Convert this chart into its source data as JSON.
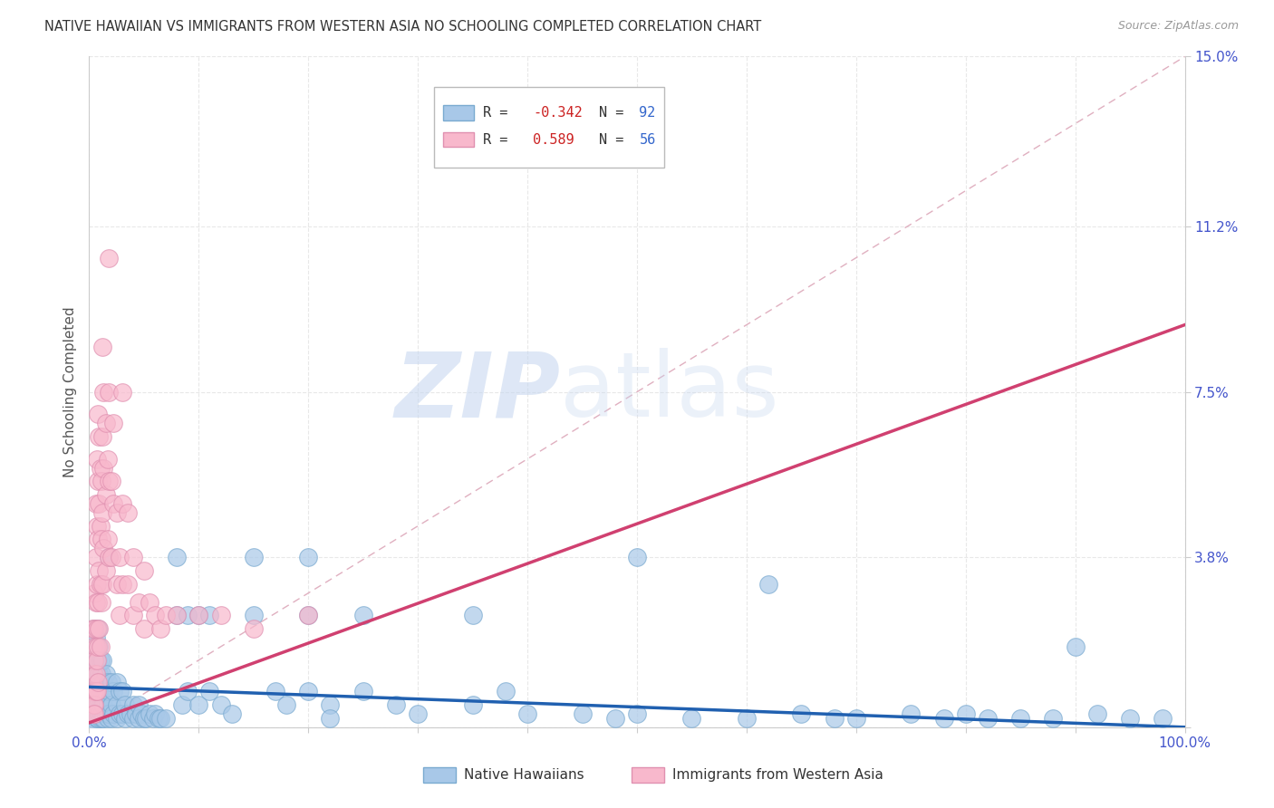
{
  "title": "NATIVE HAWAIIAN VS IMMIGRANTS FROM WESTERN ASIA NO SCHOOLING COMPLETED CORRELATION CHART",
  "source": "Source: ZipAtlas.com",
  "ylabel": "No Schooling Completed",
  "xlim": [
    0,
    1.0
  ],
  "ylim": [
    0,
    0.15
  ],
  "ytick_vals": [
    0.0,
    0.038,
    0.075,
    0.112,
    0.15
  ],
  "ytick_labels": [
    "",
    "3.8%",
    "7.5%",
    "11.2%",
    "15.0%"
  ],
  "color_blue": "#a8c8e8",
  "color_blue_edge": "#7aaad0",
  "color_pink": "#f8b8cc",
  "color_pink_edge": "#e090b0",
  "line_color_blue": "#2060b0",
  "line_color_pink": "#d04070",
  "diagonal_color": "#e0b0c0",
  "grid_color": "#e8e8e8",
  "legend_R1": "-0.342",
  "legend_N1": "92",
  "legend_R2": "0.589",
  "legend_N2": "56",
  "label1": "Native Hawaiians",
  "label2": "Immigrants from Western Asia",
  "blue_line": [
    0.0,
    1.0,
    0.009,
    0.0
  ],
  "pink_line": [
    0.0,
    1.0,
    0.001,
    0.09
  ],
  "blue_scatter": [
    [
      0.003,
      0.016
    ],
    [
      0.004,
      0.013
    ],
    [
      0.004,
      0.01
    ],
    [
      0.004,
      0.008
    ],
    [
      0.004,
      0.006
    ],
    [
      0.004,
      0.004
    ],
    [
      0.004,
      0.002
    ],
    [
      0.005,
      0.022
    ],
    [
      0.005,
      0.018
    ],
    [
      0.005,
      0.015
    ],
    [
      0.005,
      0.012
    ],
    [
      0.005,
      0.008
    ],
    [
      0.005,
      0.005
    ],
    [
      0.005,
      0.003
    ],
    [
      0.005,
      0.001
    ],
    [
      0.006,
      0.02
    ],
    [
      0.006,
      0.015
    ],
    [
      0.006,
      0.012
    ],
    [
      0.006,
      0.008
    ],
    [
      0.006,
      0.005
    ],
    [
      0.006,
      0.003
    ],
    [
      0.007,
      0.018
    ],
    [
      0.007,
      0.012
    ],
    [
      0.007,
      0.008
    ],
    [
      0.007,
      0.005
    ],
    [
      0.007,
      0.002
    ],
    [
      0.008,
      0.022
    ],
    [
      0.008,
      0.015
    ],
    [
      0.008,
      0.01
    ],
    [
      0.008,
      0.005
    ],
    [
      0.008,
      0.002
    ],
    [
      0.009,
      0.018
    ],
    [
      0.009,
      0.012
    ],
    [
      0.009,
      0.008
    ],
    [
      0.009,
      0.003
    ],
    [
      0.01,
      0.015
    ],
    [
      0.01,
      0.01
    ],
    [
      0.01,
      0.005
    ],
    [
      0.01,
      0.002
    ],
    [
      0.011,
      0.012
    ],
    [
      0.011,
      0.008
    ],
    [
      0.011,
      0.003
    ],
    [
      0.012,
      0.015
    ],
    [
      0.012,
      0.01
    ],
    [
      0.012,
      0.005
    ],
    [
      0.012,
      0.002
    ],
    [
      0.013,
      0.01
    ],
    [
      0.013,
      0.005
    ],
    [
      0.013,
      0.002
    ],
    [
      0.015,
      0.012
    ],
    [
      0.015,
      0.008
    ],
    [
      0.015,
      0.003
    ],
    [
      0.017,
      0.01
    ],
    [
      0.017,
      0.005
    ],
    [
      0.017,
      0.002
    ],
    [
      0.018,
      0.038
    ],
    [
      0.018,
      0.008
    ],
    [
      0.018,
      0.003
    ],
    [
      0.02,
      0.01
    ],
    [
      0.02,
      0.005
    ],
    [
      0.02,
      0.002
    ],
    [
      0.022,
      0.008
    ],
    [
      0.022,
      0.003
    ],
    [
      0.025,
      0.01
    ],
    [
      0.025,
      0.005
    ],
    [
      0.025,
      0.002
    ],
    [
      0.028,
      0.008
    ],
    [
      0.028,
      0.003
    ],
    [
      0.03,
      0.008
    ],
    [
      0.03,
      0.003
    ],
    [
      0.033,
      0.005
    ],
    [
      0.033,
      0.002
    ],
    [
      0.035,
      0.003
    ],
    [
      0.038,
      0.003
    ],
    [
      0.04,
      0.005
    ],
    [
      0.04,
      0.002
    ],
    [
      0.043,
      0.003
    ],
    [
      0.045,
      0.005
    ],
    [
      0.045,
      0.002
    ],
    [
      0.048,
      0.003
    ],
    [
      0.05,
      0.002
    ],
    [
      0.052,
      0.002
    ],
    [
      0.055,
      0.003
    ],
    [
      0.058,
      0.002
    ],
    [
      0.06,
      0.003
    ],
    [
      0.063,
      0.002
    ],
    [
      0.065,
      0.002
    ],
    [
      0.07,
      0.002
    ],
    [
      0.08,
      0.038
    ],
    [
      0.08,
      0.025
    ],
    [
      0.085,
      0.005
    ],
    [
      0.09,
      0.025
    ],
    [
      0.09,
      0.008
    ],
    [
      0.1,
      0.025
    ],
    [
      0.1,
      0.005
    ],
    [
      0.11,
      0.025
    ],
    [
      0.11,
      0.008
    ],
    [
      0.12,
      0.005
    ],
    [
      0.13,
      0.003
    ],
    [
      0.15,
      0.038
    ],
    [
      0.15,
      0.025
    ],
    [
      0.17,
      0.008
    ],
    [
      0.18,
      0.005
    ],
    [
      0.2,
      0.038
    ],
    [
      0.2,
      0.025
    ],
    [
      0.2,
      0.008
    ],
    [
      0.22,
      0.005
    ],
    [
      0.22,
      0.002
    ],
    [
      0.25,
      0.025
    ],
    [
      0.25,
      0.008
    ],
    [
      0.28,
      0.005
    ],
    [
      0.3,
      0.003
    ],
    [
      0.35,
      0.025
    ],
    [
      0.35,
      0.005
    ],
    [
      0.38,
      0.008
    ],
    [
      0.4,
      0.003
    ],
    [
      0.45,
      0.003
    ],
    [
      0.48,
      0.002
    ],
    [
      0.5,
      0.038
    ],
    [
      0.5,
      0.003
    ],
    [
      0.55,
      0.002
    ],
    [
      0.6,
      0.002
    ],
    [
      0.62,
      0.032
    ],
    [
      0.65,
      0.003
    ],
    [
      0.68,
      0.002
    ],
    [
      0.7,
      0.002
    ],
    [
      0.75,
      0.003
    ],
    [
      0.78,
      0.002
    ],
    [
      0.8,
      0.003
    ],
    [
      0.82,
      0.002
    ],
    [
      0.85,
      0.002
    ],
    [
      0.88,
      0.002
    ],
    [
      0.9,
      0.018
    ],
    [
      0.92,
      0.003
    ],
    [
      0.95,
      0.002
    ],
    [
      0.98,
      0.002
    ]
  ],
  "pink_scatter": [
    [
      0.003,
      0.022
    ],
    [
      0.004,
      0.018
    ],
    [
      0.004,
      0.012
    ],
    [
      0.004,
      0.008
    ],
    [
      0.004,
      0.005
    ],
    [
      0.004,
      0.003
    ],
    [
      0.005,
      0.03
    ],
    [
      0.005,
      0.022
    ],
    [
      0.005,
      0.015
    ],
    [
      0.005,
      0.008
    ],
    [
      0.005,
      0.005
    ],
    [
      0.005,
      0.003
    ],
    [
      0.006,
      0.05
    ],
    [
      0.006,
      0.038
    ],
    [
      0.006,
      0.028
    ],
    [
      0.006,
      0.018
    ],
    [
      0.006,
      0.012
    ],
    [
      0.006,
      0.008
    ],
    [
      0.007,
      0.06
    ],
    [
      0.007,
      0.045
    ],
    [
      0.007,
      0.032
    ],
    [
      0.007,
      0.022
    ],
    [
      0.007,
      0.015
    ],
    [
      0.007,
      0.008
    ],
    [
      0.008,
      0.07
    ],
    [
      0.008,
      0.055
    ],
    [
      0.008,
      0.042
    ],
    [
      0.008,
      0.028
    ],
    [
      0.008,
      0.018
    ],
    [
      0.008,
      0.01
    ],
    [
      0.009,
      0.065
    ],
    [
      0.009,
      0.05
    ],
    [
      0.009,
      0.035
    ],
    [
      0.009,
      0.022
    ],
    [
      0.01,
      0.058
    ],
    [
      0.01,
      0.045
    ],
    [
      0.01,
      0.032
    ],
    [
      0.01,
      0.018
    ],
    [
      0.011,
      0.055
    ],
    [
      0.011,
      0.042
    ],
    [
      0.011,
      0.028
    ],
    [
      0.012,
      0.085
    ],
    [
      0.012,
      0.065
    ],
    [
      0.012,
      0.048
    ],
    [
      0.012,
      0.032
    ],
    [
      0.013,
      0.075
    ],
    [
      0.013,
      0.058
    ],
    [
      0.013,
      0.04
    ],
    [
      0.015,
      0.068
    ],
    [
      0.015,
      0.052
    ],
    [
      0.015,
      0.035
    ],
    [
      0.017,
      0.06
    ],
    [
      0.017,
      0.042
    ],
    [
      0.018,
      0.105
    ],
    [
      0.018,
      0.075
    ],
    [
      0.018,
      0.055
    ],
    [
      0.018,
      0.038
    ],
    [
      0.02,
      0.055
    ],
    [
      0.02,
      0.038
    ],
    [
      0.022,
      0.068
    ],
    [
      0.022,
      0.05
    ],
    [
      0.025,
      0.048
    ],
    [
      0.025,
      0.032
    ],
    [
      0.028,
      0.038
    ],
    [
      0.028,
      0.025
    ],
    [
      0.03,
      0.075
    ],
    [
      0.03,
      0.05
    ],
    [
      0.03,
      0.032
    ],
    [
      0.035,
      0.048
    ],
    [
      0.035,
      0.032
    ],
    [
      0.04,
      0.038
    ],
    [
      0.04,
      0.025
    ],
    [
      0.045,
      0.028
    ],
    [
      0.05,
      0.035
    ],
    [
      0.05,
      0.022
    ],
    [
      0.055,
      0.028
    ],
    [
      0.06,
      0.025
    ],
    [
      0.065,
      0.022
    ],
    [
      0.07,
      0.025
    ],
    [
      0.08,
      0.025
    ],
    [
      0.1,
      0.025
    ],
    [
      0.12,
      0.025
    ],
    [
      0.15,
      0.022
    ],
    [
      0.2,
      0.025
    ]
  ]
}
